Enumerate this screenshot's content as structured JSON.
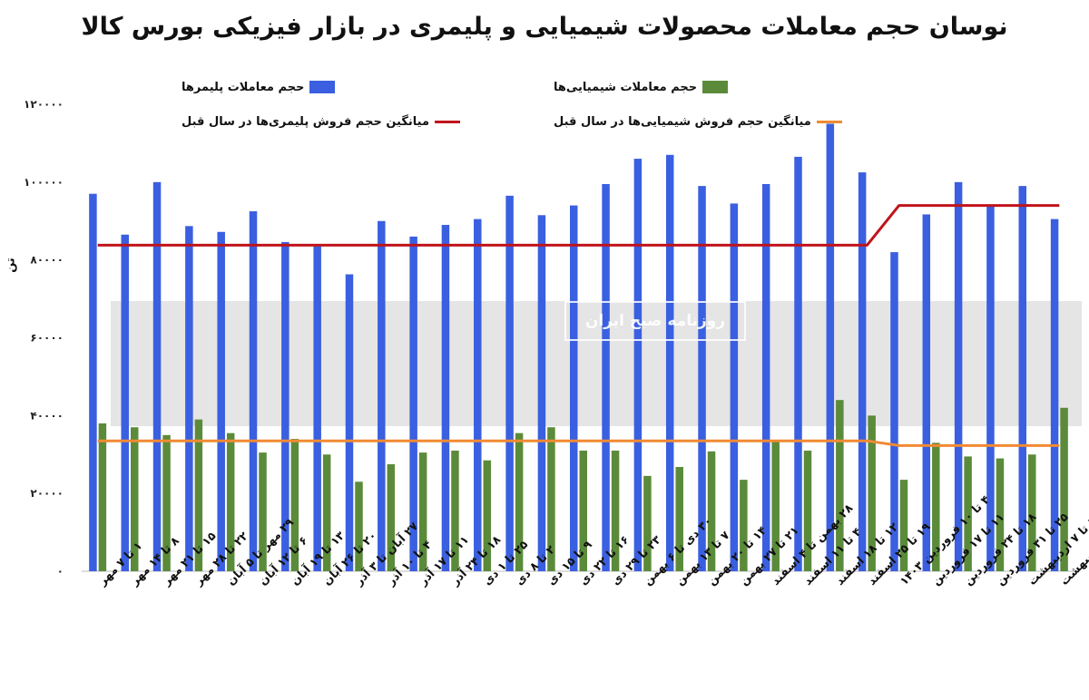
{
  "chart_data": {
    "type": "bar",
    "title": "نوسان حجم معاملات محصولات شیمیایی و پلیمری در بازار فیزیکی بورس کالا",
    "ylabel": "تن",
    "ylim": [
      0,
      120000
    ],
    "yticks": [
      "۰",
      "۲۰۰۰۰",
      "۴۰۰۰۰",
      "۶۰۰۰۰",
      "۸۰۰۰۰",
      "۱۰۰۰۰۰",
      "۱۲۰۰۰۰"
    ],
    "ytick_values": [
      0,
      20000,
      40000,
      60000,
      80000,
      100000,
      120000
    ],
    "watermark": "روزنامه صبح ایران",
    "categories": [
      "۱ تا ۷ مهر",
      "۸ تا ۱۴ مهر",
      "۱۵ تا ۲۱ مهر",
      "۲۲ تا ۲۸ مهر",
      "۲۹ مهر تا ۵ آبان",
      "۶ تا ۱۲ آبان",
      "۱۳ تا ۱۹ آبان",
      "۲۰ تا ۲۶ آبان",
      "۲۷ آبان تا ۳ آذر",
      "۴ تا ۱۰ آذر",
      "۱۱ تا ۱۷ آذر",
      "۱۸ تا ۲۴ آذر",
      "۲۵ تا ۱ دی",
      "۲ تا ۸ دی",
      "۹ تا ۱۵ دی",
      "۱۶ تا ۲۲ دی",
      "۲۳ تا ۲۹ دی",
      "۳۰ دی تا ۶ بهمن",
      "۷ تا ۱۳ بهمن",
      "۱۴ تا ۲۰ بهمن",
      "۲۱ تا ۲۷ بهمن",
      "۲۸ بهمن تا ۴ اسفند",
      "۴ تا ۱۱ اسفند",
      "۱۲ تا ۱۸ اسفند",
      "۱۹ تا ۲۵ اسفند",
      "۴ تا ۱۰ فروردین ۱۴۰۳",
      "۱۱ تا ۱۷ فروردین",
      "۱۸ تا ۲۴ فروردین",
      "۲۵ تا ۳۱ فروردین",
      "۱ تا ۷ اردیبهشت",
      "۸ تا ۱۴ اردیبهشت"
    ],
    "series": [
      {
        "name": "حجم معاملات پلیمرها",
        "type": "bar",
        "color": "#3a5fe0",
        "values": [
          97000,
          86500,
          100000,
          88700,
          87200,
          92500,
          84600,
          83500,
          76300,
          90000,
          86000,
          89000,
          90500,
          96500,
          91500,
          94000,
          99500,
          106000,
          107000,
          99000,
          94500,
          99500,
          106500,
          115000,
          102500,
          82000,
          91700,
          100000,
          94000,
          99000,
          90500
        ]
      },
      {
        "name": "حجم معاملات شیمیایی‌ها",
        "type": "bar",
        "color": "#5b8b3a",
        "values": [
          38000,
          37000,
          35000,
          39000,
          35500,
          30500,
          34000,
          30000,
          23000,
          27500,
          30500,
          31000,
          28500,
          35500,
          37000,
          31000,
          31000,
          24500,
          26800,
          30800,
          23500,
          33500,
          31000,
          44000,
          40000,
          23500,
          33000,
          29500,
          29000,
          30000,
          42000
        ]
      },
      {
        "name": "میانگین حجم فروش پلیمری‌ها در سال قبل",
        "type": "line",
        "color": "#c0141b",
        "values": [
          83800,
          83800,
          83800,
          83800,
          83800,
          83800,
          83800,
          83800,
          83800,
          83800,
          83800,
          83800,
          83800,
          83800,
          83800,
          83800,
          83800,
          83800,
          83800,
          83800,
          83800,
          83800,
          83800,
          83800,
          83800,
          94000,
          94000,
          94000,
          94000,
          94000,
          94000
        ]
      },
      {
        "name": "میانگین حجم فروش شیمیایی‌ها در سال قبل",
        "type": "line",
        "color": "#f08a33",
        "values": [
          33500,
          33500,
          33500,
          33500,
          33500,
          33500,
          33500,
          33500,
          33500,
          33500,
          33500,
          33500,
          33500,
          33500,
          33500,
          33500,
          33500,
          33500,
          33500,
          33500,
          33500,
          33500,
          33500,
          33500,
          33500,
          32300,
          32300,
          32300,
          32300,
          32300,
          32300
        ]
      }
    ]
  }
}
